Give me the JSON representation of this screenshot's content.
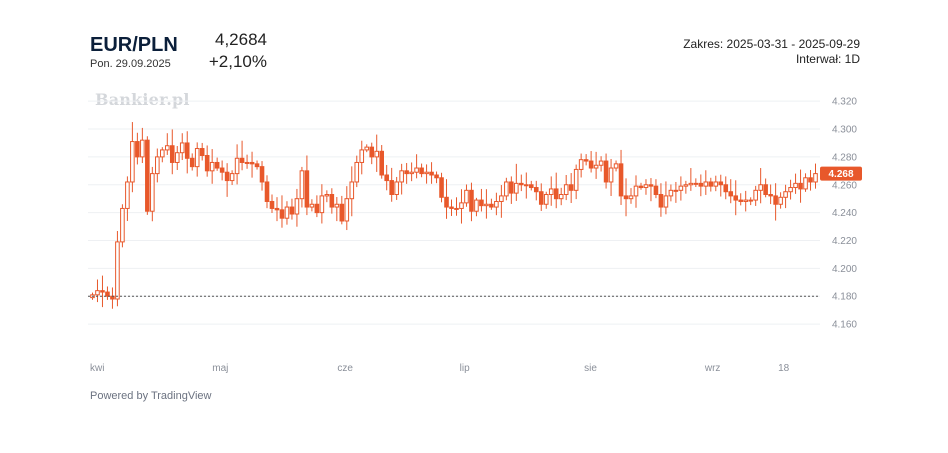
{
  "header": {
    "symbol": "EUR/PLN",
    "date": "Pon. 29.09.2025",
    "price": "4,2684",
    "change": "+2,10%",
    "range": "Zakres: 2025-03-31 - 2025-09-29",
    "interval": "Interwał: 1D"
  },
  "watermark": "Bankier.pl",
  "footer": {
    "powered_by": "Powered by TradingView"
  },
  "colors": {
    "accent": "#e8582b",
    "reference_line": "#555555"
  },
  "chart_data": {
    "type": "candlestick",
    "x_labels": [
      "kwi",
      "maj",
      "cze",
      "lip",
      "sie",
      "wrz",
      "18"
    ],
    "y_ticks": [
      "4.160",
      "4.180",
      "4.200",
      "4.220",
      "4.240",
      "4.260",
      "4.280",
      "4.300",
      "4.320"
    ],
    "ylim": [
      4.145,
      4.328
    ],
    "grid": "horizontal",
    "reference_value": 4.18,
    "last_value": 4.268,
    "last_label": "4.268",
    "series": [
      {
        "name": "EUR/PLN",
        "data": [
          4.181,
          4.184,
          4.183,
          4.18,
          4.178,
          4.219,
          4.243,
          4.262,
          4.291,
          4.28,
          4.292,
          4.241,
          4.268,
          4.28,
          4.285,
          4.288,
          4.276,
          4.283,
          4.29,
          4.279,
          4.273,
          4.286,
          4.281,
          4.27,
          4.276,
          4.272,
          4.269,
          4.263,
          4.268,
          4.279,
          4.276,
          4.276,
          4.275,
          4.273,
          4.262,
          4.248,
          4.243,
          4.242,
          4.236,
          4.244,
          4.239,
          4.25,
          4.27,
          4.244,
          4.246,
          4.24,
          4.252,
          4.253,
          4.244,
          4.246,
          4.234,
          4.25,
          4.262,
          4.276,
          4.285,
          4.287,
          4.28,
          4.284,
          4.267,
          4.263,
          4.253,
          4.262,
          4.27,
          4.268,
          4.269,
          4.272,
          4.268,
          4.269,
          4.267,
          4.265,
          4.251,
          4.244,
          4.243,
          4.243,
          4.247,
          4.256,
          4.241,
          4.249,
          4.245,
          4.246,
          4.244,
          4.248,
          4.252,
          4.262,
          4.254,
          4.261,
          4.26,
          4.26,
          4.258,
          4.255,
          4.246,
          4.253,
          4.257,
          4.25,
          4.253,
          4.26,
          4.256,
          4.271,
          4.278,
          4.277,
          4.272,
          4.274,
          4.277,
          4.262,
          4.272,
          4.275,
          4.252,
          4.25,
          4.252,
          4.259,
          4.258,
          4.26,
          4.259,
          4.253,
          4.244,
          4.252,
          4.256,
          4.256,
          4.259,
          4.26,
          4.261,
          4.261,
          4.259,
          4.262,
          4.259,
          4.262,
          4.26,
          4.255,
          4.252,
          4.249,
          4.248,
          4.249,
          4.249,
          4.256,
          4.26,
          4.253,
          4.252,
          4.246,
          4.251,
          4.255,
          4.258,
          4.261,
          4.257,
          4.265,
          4.262,
          4.268
        ]
      }
    ]
  }
}
